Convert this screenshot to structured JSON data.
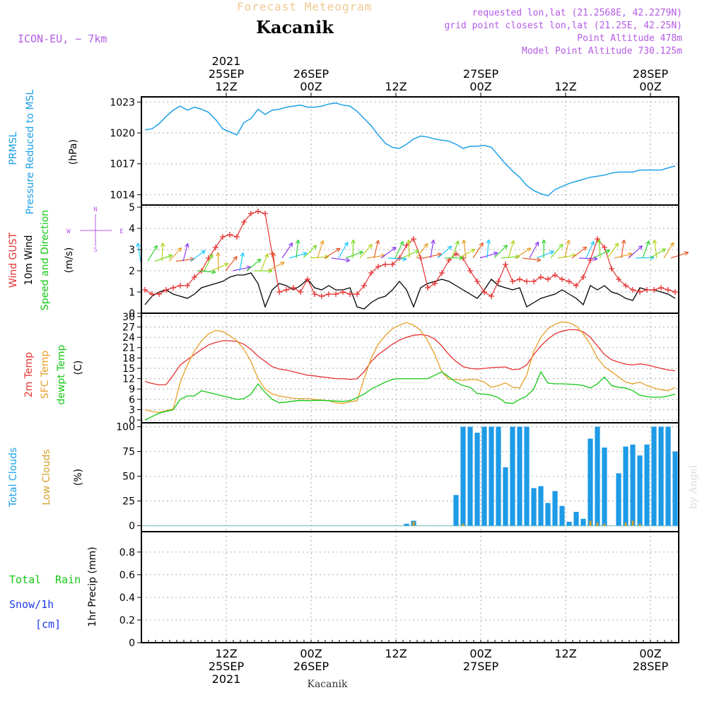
{
  "header": {
    "title": "Forecast Meteogram",
    "location": "Kacanik",
    "model": "ICON-EU, ~ 7km",
    "requested": "requested lon,lat (21.2568E, 42.2279N)",
    "grid": "grid point closest lon,lat (21.25E, 42.25N)",
    "altitude": "Point Altitude 478m",
    "model_altitude": "Model Point Altitude 730.125m",
    "credit": "by Angel",
    "footer": "Kacanik"
  },
  "colors": {
    "pressure": "#1ea0e6",
    "gust": "#e63232",
    "wind": "#000000",
    "temp2m": "#e63232",
    "sfc": "#e6a028",
    "dewpt": "#14c814",
    "clouds_total": "#1e9be6",
    "clouds_low": "#d2a028",
    "rain": "#14c814",
    "snow": "#1e3ce6",
    "label_purple": "#b45ae6"
  },
  "time_axis": {
    "top_ticks": [
      {
        "i": 12,
        "l1": "2021",
        "l2": "25SEP",
        "l3": "12Z"
      },
      {
        "i": 24,
        "l1": "",
        "l2": "26SEP",
        "l3": "00Z"
      },
      {
        "i": 36,
        "l1": "",
        "l2": "",
        "l3": "12Z"
      },
      {
        "i": 48,
        "l1": "",
        "l2": "27SEP",
        "l3": "00Z"
      },
      {
        "i": 60,
        "l1": "",
        "l2": "",
        "l3": "12Z"
      },
      {
        "i": 72,
        "l1": "",
        "l2": "28SEP",
        "l3": "00Z"
      }
    ],
    "bottom_ticks": [
      {
        "i": 12,
        "l1": "12Z",
        "l2": "25SEP",
        "l3": "2021"
      },
      {
        "i": 24,
        "l1": "00Z",
        "l2": "26SEP",
        "l3": ""
      },
      {
        "i": 36,
        "l1": "12Z",
        "l2": "",
        "l3": ""
      },
      {
        "i": 48,
        "l1": "00Z",
        "l2": "27SEP",
        "l3": ""
      },
      {
        "i": 60,
        "l1": "12Z",
        "l2": "",
        "l3": ""
      },
      {
        "i": 72,
        "l1": "00Z",
        "l2": "28SEP",
        "l3": ""
      }
    ]
  },
  "panel_labels": {
    "p1": {
      "a": "PRMSL",
      "b": "Pressure Reduced to MSL",
      "unit": "(hPa)"
    },
    "p2": {
      "a": "Wind GUST",
      "b": "10m Wind",
      "c": "Speed and Direction",
      "unit": "(m/s)"
    },
    "p3": {
      "a": "2m Temp",
      "b": "SFC Temp",
      "c": "dewpt Temp",
      "unit": "(C)"
    },
    "p4": {
      "a": "Total Clouds",
      "b": "Low Clouds",
      "unit": "(%)"
    },
    "p5": {
      "a": "Total",
      "b": "Rain",
      "c": "Snow/1h",
      "d": "[cm]",
      "unit": "1hr Precip (mm)"
    },
    "compass": {
      "n": "N",
      "s": "S",
      "w": "W",
      "e": "E"
    }
  },
  "chart_data": [
    {
      "type": "line",
      "title": "PRMSL Pressure Reduced to MSL",
      "ylabel": "hPa",
      "ylim": [
        1013,
        1023.5
      ],
      "yticks": [
        "1014",
        "1017",
        "1020",
        "1023"
      ],
      "series": [
        {
          "name": "PRMSL",
          "values": [
            1020.3,
            1020.4,
            1020.9,
            1021.6,
            1022.2,
            1022.6,
            1022.2,
            1022.5,
            1022.3,
            1022,
            1021.3,
            1020.4,
            1020.1,
            1019.8,
            1021,
            1021.4,
            1022.3,
            1021.8,
            1022.2,
            1022.3,
            1022.5,
            1022.6,
            1022.7,
            1022.5,
            1022.5,
            1022.6,
            1022.8,
            1022.9,
            1022.7,
            1022.6,
            1022.1,
            1021.4,
            1020.7,
            1019.8,
            1019,
            1018.6,
            1018.5,
            1018.9,
            1019.4,
            1019.7,
            1019.6,
            1019.4,
            1019.3,
            1019.2,
            1018.9,
            1018.5,
            1018.7,
            1018.7,
            1018.8,
            1018.6,
            1017.8,
            1017,
            1016.3,
            1015.7,
            1014.9,
            1014.4,
            1014.1,
            1013.9,
            1014.5,
            1014.8,
            1015.1,
            1015.3,
            1015.5,
            1015.7,
            1015.8,
            1015.9,
            1016.1,
            1016.2,
            1016.2,
            1016.2,
            1016.4,
            1016.4,
            1016.4,
            1016.4,
            1016.6,
            1016.8
          ]
        }
      ]
    },
    {
      "type": "line",
      "title": "Wind GUST / 10m Wind Speed and Direction",
      "ylabel": "m/s",
      "ylim": [
        0,
        5.1
      ],
      "yticks": [
        "0",
        "1",
        "2",
        "3",
        "4",
        "5"
      ],
      "series": [
        {
          "name": "Wind GUST",
          "values": [
            1.1,
            0.9,
            0.9,
            1.1,
            1.2,
            1.3,
            1.3,
            1.7,
            2.0,
            2.6,
            3.1,
            3.6,
            3.7,
            3.6,
            4.3,
            4.7,
            4.8,
            4.7,
            2.8,
            1.0,
            1.1,
            1.2,
            1.0,
            1.6,
            0.9,
            0.8,
            0.9,
            0.9,
            1.0,
            0.9,
            0.9,
            1.3,
            1.9,
            2.2,
            2.3,
            2.3,
            2.6,
            3.2,
            3.5,
            2.6,
            1.2,
            1.4,
            1.9,
            2.5,
            2.8,
            2.6,
            2.0,
            1.5,
            1.0,
            0.8,
            1.5,
            2.3,
            1.5,
            1.6,
            1.5,
            1.5,
            1.7,
            1.6,
            1.8,
            1.6,
            1.5,
            1.3,
            1.7,
            2.5,
            3.5,
            3.1,
            2.1,
            1.6,
            1.3,
            1.1,
            1.0,
            1.1,
            1.1,
            1.2,
            1.1,
            1.0
          ]
        },
        {
          "name": "10m Wind",
          "values": [
            0.4,
            0.8,
            1.0,
            1.1,
            0.9,
            0.8,
            0.7,
            0.9,
            1.2,
            1.3,
            1.4,
            1.5,
            1.7,
            1.8,
            1.8,
            1.9,
            1.4,
            0.3,
            1.1,
            1.4,
            1.3,
            1.1,
            1.3,
            1.6,
            1.2,
            1.1,
            1.3,
            1.1,
            1.1,
            1.2,
            0.3,
            0.2,
            0.5,
            0.7,
            0.8,
            1.1,
            1.5,
            1.1,
            0.3,
            1.2,
            1.4,
            1.5,
            1.6,
            1.5,
            1.3,
            1.1,
            0.9,
            0.7,
            1.1,
            1.6,
            1.3,
            1.2,
            1.1,
            1.2,
            0.3,
            0.5,
            0.7,
            0.8,
            0.9,
            1.1,
            0.9,
            0.7,
            0.4,
            1.3,
            1.1,
            1.3,
            1.0,
            0.9,
            0.7,
            0.6,
            1.2,
            1.1,
            1.1,
            1.0,
            0.9,
            0.7
          ]
        }
      ]
    },
    {
      "type": "line",
      "title": "2m Temp / SFC Temp / dewpt Temp",
      "ylabel": "C",
      "ylim": [
        -0.8,
        31
      ],
      "yticks": [
        "0",
        "3",
        "6",
        "9",
        "12",
        "15",
        "18",
        "21",
        "24",
        "27",
        "30"
      ],
      "series": [
        {
          "name": "2m Temp",
          "values": [
            11.2,
            10.6,
            10.2,
            10.3,
            13,
            16,
            17.5,
            19,
            20.5,
            21.8,
            22.5,
            23,
            23,
            22.8,
            22,
            20.5,
            18.5,
            17,
            15.5,
            14.8,
            14.5,
            14,
            13.5,
            13,
            12.8,
            12.5,
            12.3,
            12,
            12,
            11.8,
            12,
            14,
            17,
            19,
            20.5,
            22,
            23.2,
            24,
            24.6,
            24.8,
            24.5,
            23.5,
            21.5,
            19,
            17,
            15.5,
            15,
            14.8,
            15,
            15.2,
            15.3,
            15.4,
            14.6,
            14.8,
            16,
            19,
            21.5,
            23.5,
            25,
            25.8,
            26.2,
            26.2,
            25.6,
            24,
            21.5,
            19,
            17.5,
            16.8,
            16.2,
            16,
            16.3,
            16,
            15.5,
            15,
            14.5,
            14.3
          ]
        },
        {
          "name": "SFC Temp",
          "values": [
            3,
            2.5,
            2.2,
            2.7,
            3.2,
            11,
            16,
            20,
            23,
            25,
            26,
            25.7,
            24.5,
            23,
            20.5,
            17,
            12,
            9,
            7.6,
            7,
            6.6,
            6.3,
            6.2,
            6.2,
            6,
            5.8,
            5.6,
            5,
            4.8,
            5.3,
            5.6,
            12,
            18,
            22,
            24.5,
            26.5,
            27.5,
            28.3,
            27.5,
            26,
            23,
            19,
            14,
            11.8,
            11.8,
            11.5,
            11.8,
            11.7,
            11,
            9.5,
            10,
            10.8,
            9.5,
            9.3,
            13,
            20,
            24,
            26.5,
            27.8,
            28.5,
            28.2,
            27.3,
            25,
            22,
            18,
            15.5,
            14,
            12.5,
            11,
            10.5,
            11,
            10,
            9.3,
            8.8,
            8.5,
            9.5
          ]
        },
        {
          "name": "dewpt Temp",
          "values": [
            0,
            1,
            2,
            2.5,
            3,
            6,
            7,
            7,
            8.5,
            8,
            7.5,
            7,
            6.5,
            6,
            6.2,
            7.5,
            10.5,
            8,
            6,
            5,
            5.2,
            5.5,
            5.7,
            5.6,
            5.7,
            5.7,
            5.6,
            5.5,
            5.4,
            5.6,
            6.5,
            7.5,
            9,
            10,
            11,
            11.8,
            12,
            12,
            12,
            12,
            12,
            13,
            14,
            12.5,
            11,
            10,
            9.5,
            7.7,
            7.5,
            7.2,
            6.5,
            5,
            4.8,
            6,
            7,
            9,
            14,
            10.7,
            10.5,
            10.5,
            10.4,
            10.3,
            10,
            9.3,
            10.5,
            12.5,
            10,
            9.5,
            9.3,
            8.5,
            7.2,
            6.8,
            6.6,
            6.6,
            7,
            7.5
          ]
        }
      ]
    },
    {
      "type": "bar",
      "title": "Total Clouds / Low Clouds",
      "ylabel": "%",
      "ylim": [
        -6,
        104
      ],
      "yticks": [
        "0",
        "25",
        "50",
        "75",
        "100"
      ],
      "series": [
        {
          "name": "Total Clouds",
          "values": [
            0,
            0,
            0,
            0,
            0,
            0,
            0,
            0,
            0,
            0,
            0,
            0,
            0,
            0,
            0,
            0,
            0,
            0,
            0,
            0,
            0,
            0,
            0,
            0,
            0,
            0,
            0,
            0,
            0,
            0,
            0,
            0,
            0,
            0,
            0,
            0,
            0,
            2,
            5,
            0,
            0,
            0,
            0,
            0,
            31,
            100,
            100,
            94,
            100,
            100,
            100,
            59,
            100,
            100,
            100,
            38,
            40,
            23,
            35,
            20,
            4,
            14,
            7,
            88,
            100,
            79,
            0,
            53,
            80,
            82,
            71,
            82,
            100,
            100,
            100,
            75
          ]
        },
        {
          "name": "Low Clouds",
          "values": [
            0,
            0,
            0,
            0,
            0,
            0,
            0,
            0,
            0,
            0,
            0,
            0,
            0,
            0,
            0,
            0,
            0,
            0,
            0,
            0,
            0,
            0,
            0,
            0,
            0,
            0,
            0,
            0,
            0,
            0,
            0,
            0,
            0,
            0,
            0,
            0,
            0,
            0,
            4,
            0,
            0,
            0,
            0,
            0,
            0,
            2,
            0,
            0,
            0,
            0,
            0,
            0,
            0,
            0,
            0,
            0,
            0,
            0,
            0,
            0,
            0,
            0,
            0,
            5,
            3,
            2,
            0,
            0,
            3,
            5,
            2,
            0,
            0,
            0,
            0,
            0
          ]
        }
      ]
    },
    {
      "type": "bar",
      "title": "1hr Precip",
      "ylabel": "1hr Precip (mm)",
      "ylim": [
        0,
        0.98
      ],
      "yticks": [
        "0",
        "0.2",
        "0.4",
        "0.6",
        "0.8"
      ],
      "series": [
        {
          "name": "Total Rain",
          "values": []
        },
        {
          "name": "Snow/1h",
          "values": []
        }
      ]
    }
  ]
}
